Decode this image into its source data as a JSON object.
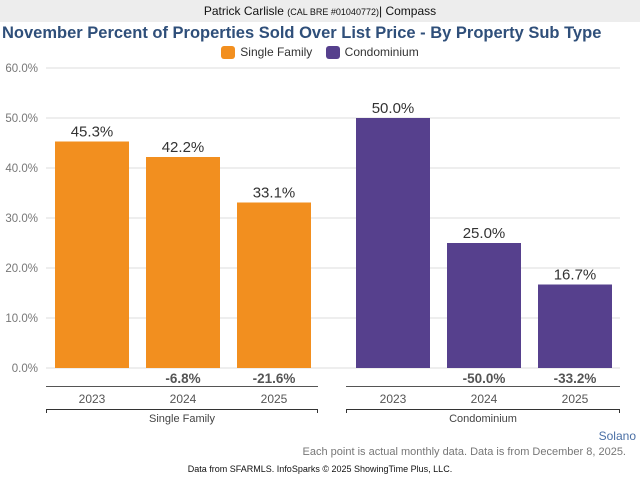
{
  "header": {
    "agent": "Patrick Carlisle",
    "license": "(CAL BRE #01040772)",
    "separator": "|",
    "company": "Compass"
  },
  "footer": {
    "region": "Solano",
    "note": "Each point is actual monthly data. Data is from December 8, 2025.",
    "source": "Data from SFARMLS. InfoSparks © 2025 ShowingTime Plus, LLC."
  },
  "chart_data": {
    "type": "bar",
    "title": "November Percent of Properties Sold Over List Price - By Property Sub Type",
    "xlabel": "",
    "ylabel": "",
    "ylim": [
      0,
      60
    ],
    "yticks": [
      "0.0%",
      "10.0%",
      "20.0%",
      "30.0%",
      "40.0%",
      "50.0%",
      "60.0%"
    ],
    "grid": true,
    "legend_position": "top-center",
    "categories": [
      "2023",
      "2024",
      "2025"
    ],
    "series": [
      {
        "name": "Single Family",
        "color": "#f28f1f",
        "values": [
          45.3,
          42.2,
          33.1
        ],
        "labels": [
          "45.3%",
          "42.2%",
          "33.1%"
        ],
        "changes": [
          "",
          "-6.8%",
          "-21.6%"
        ]
      },
      {
        "name": "Condominium",
        "color": "#56408d",
        "values": [
          50.0,
          25.0,
          16.7
        ],
        "labels": [
          "50.0%",
          "25.0%",
          "16.7%"
        ],
        "changes": [
          "",
          "-50.0%",
          "-33.2%"
        ]
      }
    ]
  }
}
